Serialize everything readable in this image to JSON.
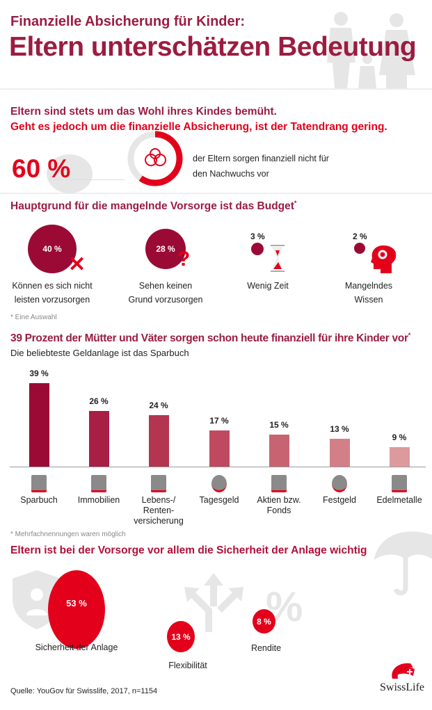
{
  "header": {
    "kicker": "Finanzielle Absicherung für Kinder:",
    "title": "Eltern unterschätzen Bedeutung"
  },
  "intro": {
    "line1": "Eltern sind stets um das Wohl ihres Kindes bemüht.",
    "line2": "Geht es jedoch um die finanzielle Absicherung, ist der Tatendrang gering.",
    "big_value": "60 %",
    "donut_fraction": 0.6,
    "desc1": "der Eltern sorgen finanziell nicht für",
    "desc2": "den Nachwuchs vor"
  },
  "reasons": {
    "title": "Hauptgrund für die mangelnde Vorsorge ist das Budget",
    "asterisk": "*",
    "items": [
      {
        "value": "40 %",
        "l1": "Können es sich nicht",
        "l2": "leisten vorzusorgen"
      },
      {
        "value": "28 %",
        "l1": "Sehen keinen",
        "l2": "Grund vorzusorgen"
      },
      {
        "value": "3 %",
        "l1": "Wenig Zeit",
        "l2": ""
      },
      {
        "value": "2 %",
        "l1": "Mangelndes",
        "l2": "Wissen"
      }
    ],
    "footnote": "* Eine Auswahl"
  },
  "chart_data": {
    "type": "bar",
    "title": "39 Prozent der Mütter und Väter sorgen schon heute finanziell für ihre Kinder vor",
    "title_asterisk": "*",
    "subtitle": "Die beliebteste Geldanlage ist das Sparbuch",
    "categories": [
      "Sparbuch",
      "Immobilien",
      "Lebens-/ Renten- versicherung",
      "Tagesgeld",
      "Aktien bzw. Fonds",
      "Festgeld",
      "Edelmetalle"
    ],
    "label_lines": [
      [
        "Sparbuch"
      ],
      [
        "Immobilien"
      ],
      [
        "Lebens-/",
        "Renten-",
        "versicherung"
      ],
      [
        "Tagesgeld"
      ],
      [
        "Aktien bzw.",
        "Fonds"
      ],
      [
        "Festgeld"
      ],
      [
        "Edelmetalle"
      ]
    ],
    "values": [
      39,
      26,
      24,
      17,
      15,
      13,
      9
    ],
    "value_labels": [
      "39 %",
      "26 %",
      "24 %",
      "17 %",
      "15 %",
      "13 %",
      "9 %"
    ],
    "colors": [
      "#9b0a35",
      "#a81e45",
      "#b3354f",
      "#bf4a60",
      "#c86472",
      "#d27f88",
      "#dc9a9e"
    ],
    "ylim": [
      0,
      40
    ],
    "unit": "%",
    "footnote": "* Mehrfachnennungen waren möglich"
  },
  "priorities": {
    "title": "Eltern ist bei der Vorsorge vor allem die Sicherheit der Anlage wichtig",
    "items": [
      {
        "value": "53 %",
        "label": "Sicherheit der Anlage"
      },
      {
        "value": "13 %",
        "label": "Flexibilität"
      },
      {
        "value": "8 %",
        "label": "Rendite"
      }
    ]
  },
  "footer": {
    "source": "Quelle: YouGov für Swisslife, 2017, n=1154",
    "logo": "SwissLife"
  },
  "colors": {
    "dark": "#9b1c42",
    "red": "#e3001b",
    "gray": "#dcdcdc"
  }
}
